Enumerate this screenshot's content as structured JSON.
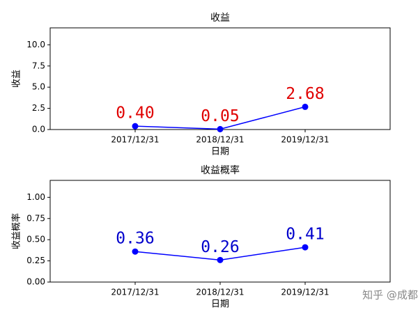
{
  "chart_data": [
    {
      "type": "line",
      "title": "收益",
      "x_label": "日期",
      "y_label": "收益",
      "categories": [
        "2017/12/31",
        "2018/12/31",
        "2019/12/31"
      ],
      "series": [
        {
          "color": "#0000ff",
          "values": [
            0.4,
            0.05,
            2.68
          ],
          "value_labels": [
            "0.40",
            "0.05",
            "2.68"
          ],
          "label_color": "#e00000"
        }
      ],
      "ylim": [
        0,
        12
      ],
      "yticks": [
        {
          "value": 0,
          "label": "0.0"
        },
        {
          "value": 2.5,
          "label": "2.5"
        },
        {
          "value": 5,
          "label": "5.0"
        },
        {
          "value": 7.5,
          "label": "7.5"
        },
        {
          "value": 10,
          "label": "10.0"
        }
      ]
    },
    {
      "type": "line",
      "title": "收益概率",
      "x_label": "日期",
      "y_label": "收益概率",
      "categories": [
        "2017/12/31",
        "2018/12/31",
        "2019/12/31"
      ],
      "series": [
        {
          "color": "#0000ff",
          "values": [
            0.36,
            0.26,
            0.41
          ],
          "label_color": "#0000cc"
        }
      ],
      "ylim": [
        0,
        1.2
      ],
      "yticks": [
        {
          "value": 0,
          "label": "0.00"
        },
        {
          "value": 0.25,
          "label": "0.25"
        },
        {
          "value": 0.5,
          "label": "0.50"
        },
        {
          "value": 0.75,
          "label": "0.75"
        },
        {
          "value": 1,
          "label": "1.00"
        }
      ]
    }
  ],
  "watermark": "知乎 @成都"
}
